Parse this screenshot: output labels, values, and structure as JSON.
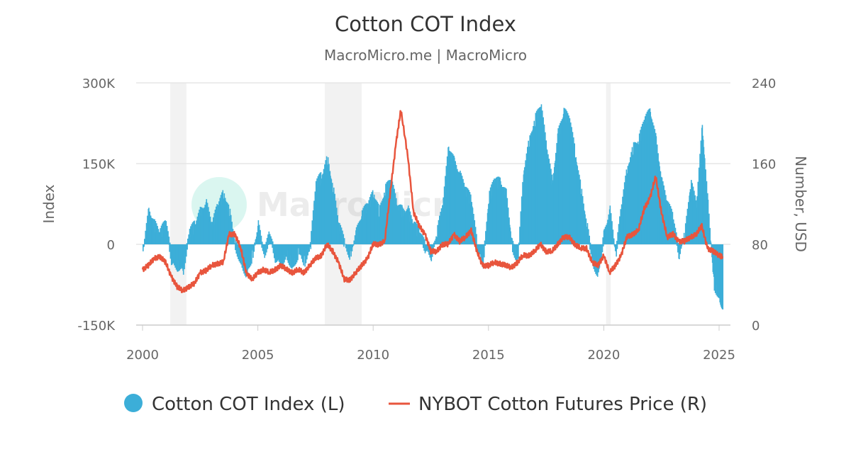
{
  "chart_data": {
    "type": "bar+line",
    "title": "Cotton COT Index",
    "subtitle": "MacroMicro.me | MacroMicro",
    "watermark": "MacroMicro",
    "x_ticks": [
      "2000",
      "2005",
      "2010",
      "2015",
      "2020",
      "2025"
    ],
    "xlim": [
      2000,
      2025.3
    ],
    "left_axis": {
      "label": "Index",
      "ylim": [
        -150000,
        300000
      ],
      "ticks": [
        -150000,
        0,
        150000,
        300000
      ],
      "tick_labels": [
        "-150K",
        "0",
        "150K",
        "300K"
      ]
    },
    "right_axis": {
      "label": "Number, USD",
      "ylim": [
        0,
        240
      ],
      "ticks": [
        0,
        80,
        160,
        240
      ],
      "tick_labels": [
        "0",
        "80",
        "160",
        "240"
      ]
    },
    "grid": true,
    "legend_position": "bottom",
    "recessions": [
      [
        2001.2,
        2001.9
      ],
      [
        2007.9,
        2009.5
      ],
      [
        2020.1,
        2020.3
      ]
    ],
    "colors": {
      "index": "#3caed8",
      "price": "#e8553d",
      "recession": "#f2f2f2"
    },
    "series": [
      {
        "name": "Cotton COT Index (L)",
        "type": "bar",
        "axis": "left",
        "x": [
          2000,
          2000.25,
          2000.5,
          2000.75,
          2001,
          2001.25,
          2001.5,
          2001.75,
          2002,
          2002.25,
          2002.5,
          2002.75,
          2003,
          2003.25,
          2003.5,
          2003.75,
          2004,
          2004.25,
          2004.5,
          2004.75,
          2005,
          2005.25,
          2005.5,
          2005.75,
          2006,
          2006.25,
          2006.5,
          2006.75,
          2007,
          2007.25,
          2007.5,
          2007.75,
          2008,
          2008.25,
          2008.5,
          2008.75,
          2009,
          2009.25,
          2009.5,
          2009.75,
          2010,
          2010.25,
          2010.5,
          2010.75,
          2011,
          2011.25,
          2011.5,
          2011.75,
          2012,
          2012.25,
          2012.5,
          2012.75,
          2013,
          2013.25,
          2013.5,
          2013.75,
          2014,
          2014.25,
          2014.5,
          2014.75,
          2015,
          2015.25,
          2015.5,
          2015.75,
          2016,
          2016.25,
          2016.5,
          2016.75,
          2017,
          2017.25,
          2017.5,
          2017.75,
          2018,
          2018.25,
          2018.5,
          2018.75,
          2019,
          2019.25,
          2019.5,
          2019.75,
          2020,
          2020.25,
          2020.5,
          2020.75,
          2021,
          2021.25,
          2021.5,
          2021.75,
          2022,
          2022.25,
          2022.5,
          2022.75,
          2023,
          2023.25,
          2023.5,
          2023.75,
          2024,
          2024.25,
          2024.5,
          2024.75,
          2025,
          2025.15
        ],
        "values": [
          -13000,
          60000,
          35000,
          20000,
          40000,
          -33000,
          -40000,
          -45000,
          20000,
          35000,
          60000,
          72000,
          33000,
          72000,
          92000,
          60000,
          0,
          -33000,
          -53000,
          -20000,
          33000,
          -20000,
          20000,
          -26000,
          -33000,
          -20000,
          -40000,
          -13000,
          -33000,
          -7000,
          112000,
          125000,
          158000,
          99000,
          33000,
          0,
          -20000,
          20000,
          53000,
          72000,
          92000,
          60000,
          99000,
          118000,
          72000,
          60000,
          60000,
          33000,
          20000,
          -7000,
          -20000,
          20000,
          72000,
          178000,
          151000,
          125000,
          99000,
          79000,
          -7000,
          -33000,
          86000,
          118000,
          112000,
          92000,
          0,
          -33000,
          132000,
          191000,
          230000,
          257000,
          178000,
          112000,
          204000,
          243000,
          230000,
          165000,
          99000,
          33000,
          -33000,
          -53000,
          20000,
          60000,
          -20000,
          72000,
          138000,
          178000,
          191000,
          230000,
          243000,
          191000,
          112000,
          72000,
          46000,
          -20000,
          20000,
          112000,
          72000,
          217000,
          72000,
          -72000,
          -99000,
          -112000
        ]
      },
      {
        "name": "NYBOT Cotton Futures Price (R)",
        "type": "line",
        "axis": "right",
        "x": [
          2000,
          2000.25,
          2000.5,
          2000.75,
          2001,
          2001.25,
          2001.5,
          2001.75,
          2002,
          2002.25,
          2002.5,
          2002.75,
          2003,
          2003.25,
          2003.5,
          2003.75,
          2004,
          2004.25,
          2004.5,
          2004.75,
          2005,
          2005.25,
          2005.5,
          2005.75,
          2006,
          2006.25,
          2006.5,
          2006.75,
          2007,
          2007.25,
          2007.5,
          2007.75,
          2008,
          2008.25,
          2008.5,
          2008.75,
          2009,
          2009.25,
          2009.5,
          2009.75,
          2010,
          2010.25,
          2010.5,
          2010.75,
          2011,
          2011.2,
          2011.5,
          2011.75,
          2012,
          2012.25,
          2012.5,
          2012.75,
          2013,
          2013.25,
          2013.5,
          2013.75,
          2014,
          2014.25,
          2014.5,
          2014.75,
          2015,
          2015.25,
          2015.5,
          2015.75,
          2016,
          2016.25,
          2016.5,
          2016.75,
          2017,
          2017.25,
          2017.5,
          2017.75,
          2018,
          2018.25,
          2018.5,
          2018.75,
          2019,
          2019.25,
          2019.5,
          2019.75,
          2020,
          2020.25,
          2020.5,
          2020.75,
          2021,
          2021.25,
          2021.5,
          2021.75,
          2022,
          2022.25,
          2022.5,
          2022.75,
          2023,
          2023.25,
          2023.5,
          2023.75,
          2024,
          2024.25,
          2024.5,
          2024.75,
          2025,
          2025.15
        ],
        "values": [
          55,
          59,
          66,
          68,
          62,
          48,
          38,
          34,
          38,
          41,
          52,
          54,
          59,
          61,
          62,
          90,
          90,
          77,
          52,
          45,
          52,
          55,
          52,
          55,
          59,
          55,
          52,
          55,
          52,
          59,
          66,
          69,
          80,
          73,
          62,
          45,
          45,
          52,
          59,
          66,
          80,
          80,
          83,
          133,
          182,
          213,
          168,
          112,
          98,
          90,
          73,
          73,
          80,
          80,
          90,
          83,
          87,
          94,
          73,
          59,
          59,
          62,
          61,
          59,
          57,
          62,
          69,
          69,
          73,
          80,
          73,
          73,
          80,
          87,
          87,
          80,
          76,
          76,
          62,
          59,
          69,
          52,
          59,
          69,
          87,
          90,
          94,
          115,
          126,
          147,
          112,
          87,
          90,
          83,
          83,
          87,
          90,
          98,
          76,
          73,
          69,
          68
        ]
      }
    ]
  }
}
